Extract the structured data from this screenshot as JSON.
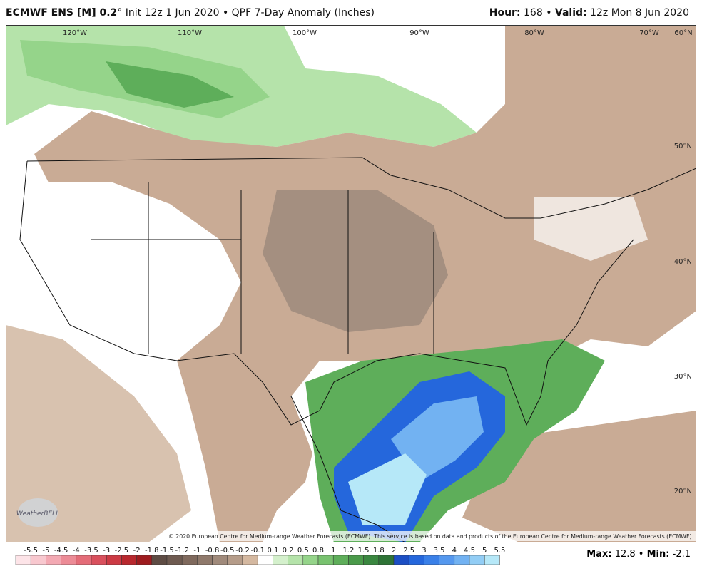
{
  "header": {
    "model": "ECMWF ENS [M] 0.2°",
    "init": "Init 12z 1 Jun 2020 • QPF 7-Day Anomaly (Inches)",
    "hour_label": "Hour:",
    "hour": "168 •",
    "valid_label": "Valid:",
    "valid": "12z Mon 8 Jun 2020"
  },
  "map": {
    "longitude_labels": [
      "120°W",
      "110°W",
      "100°W",
      "90°W",
      "80°W",
      "70°W",
      "60°N"
    ],
    "latitude_labels": [
      "50°N",
      "40°N",
      "30°N",
      "20°N"
    ],
    "logo": "WeatherBELL",
    "copyright": "© 2020 European Centre for Medium-range Weather Forecasts (ECMWF). This service is based on data and products of the European Centre for Medium-range Weather Forecasts (ECMWF)."
  },
  "colorbar": {
    "labels": [
      -5.5,
      -5,
      -4.5,
      -4,
      -3.5,
      -3,
      -2.5,
      -2,
      -1.8,
      -1.5,
      -1.2,
      -1,
      -0.8,
      -0.5,
      -0.2,
      -0.1,
      0.1,
      0.2,
      0.5,
      0.8,
      1,
      1.2,
      1.5,
      1.8,
      2,
      2.5,
      3,
      3.5,
      4,
      4.5,
      5,
      5.5
    ],
    "colors": [
      "#fde4e8",
      "#f8c8cf",
      "#f3a9b3",
      "#ec8b96",
      "#e46c78",
      "#d9505d",
      "#cc3a44",
      "#b8282e",
      "#9e1c1f",
      "#5e4c44",
      "#6e5a50",
      "#7f695d",
      "#8f796b",
      "#a08a7b",
      "#b59c89",
      "#d4b8a0",
      "#ffffff",
      "#d4f0cc",
      "#b5e3aa",
      "#95d48a",
      "#78c26f",
      "#5eae5a",
      "#4a9a4a",
      "#3a8740",
      "#2e7336",
      "#1c4fc4",
      "#2567dc",
      "#3a80e8",
      "#5598ee",
      "#72b2f2",
      "#92cdf5",
      "#b6e8f8"
    ]
  },
  "footer": {
    "max_label": "Max:",
    "max": "12.8 •",
    "min_label": "Min:",
    "min": "-2.1"
  }
}
